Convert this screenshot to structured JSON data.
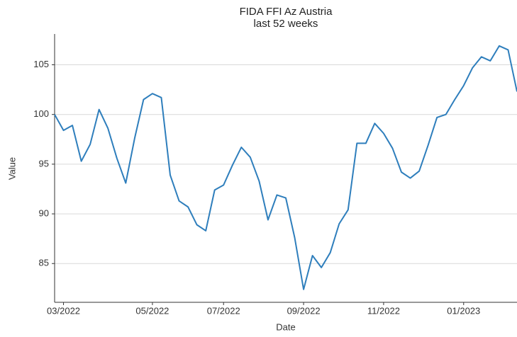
{
  "chart_data": {
    "type": "line",
    "title": "FIDA FFI Az Austria",
    "subtitle": "last 52 weeks",
    "x_label": "Date",
    "y_label": "Value",
    "categories": [
      null,
      "03/2022",
      null,
      null,
      null,
      null,
      null,
      null,
      null,
      null,
      null,
      "05/2022",
      null,
      null,
      null,
      null,
      null,
      null,
      null,
      "07/2022",
      null,
      null,
      null,
      null,
      null,
      null,
      null,
      null,
      "09/2022",
      null,
      null,
      null,
      null,
      null,
      null,
      null,
      null,
      "11/2022",
      null,
      null,
      null,
      null,
      null,
      null,
      null,
      null,
      "01/2023",
      null,
      null,
      null,
      null,
      null,
      null
    ],
    "values": [
      100.0,
      98.4,
      98.9,
      95.3,
      97.0,
      100.5,
      98.6,
      95.6,
      93.1,
      97.6,
      101.5,
      102.1,
      101.7,
      93.9,
      91.3,
      90.7,
      88.9,
      88.3,
      92.4,
      92.9,
      94.9,
      96.7,
      95.7,
      93.3,
      89.4,
      91.9,
      91.6,
      87.6,
      82.4,
      85.8,
      84.6,
      86.1,
      89.0,
      90.4,
      97.1,
      97.1,
      99.1,
      98.1,
      96.6,
      94.2,
      93.6,
      94.3,
      96.9,
      99.7,
      100.0,
      101.5,
      102.9,
      104.7,
      105.8,
      105.4,
      106.9,
      106.5,
      102.3
    ],
    "color": "#2e7ebc",
    "ylim": [
      81.1,
      108.1
    ],
    "yticks": [
      85,
      90,
      95,
      100,
      105
    ],
    "grid": true
  }
}
